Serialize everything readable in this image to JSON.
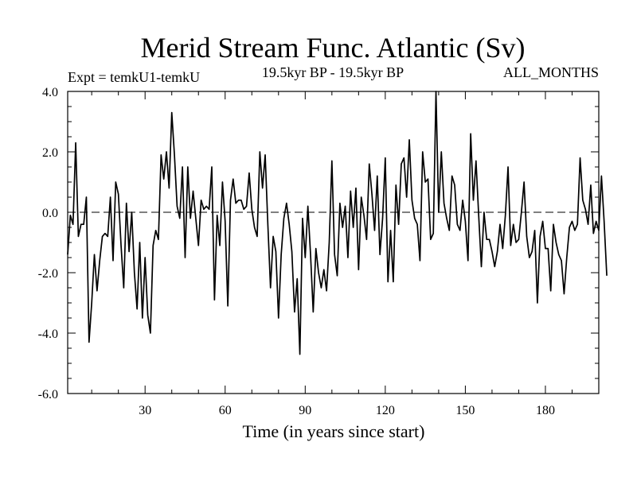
{
  "chart_data": {
    "type": "line",
    "title": "Merid Stream Func. Atlantic (Sv)",
    "subtitle_left": "Expt = temkU1-temkU",
    "subtitle_center": "19.5kyr BP - 19.5kyr BP",
    "subtitle_right": "ALL_MONTHS",
    "xlabel": "Time (in years since start)",
    "ylabel": "",
    "xlim": [
      1,
      200
    ],
    "ylim": [
      -6.0,
      4.0
    ],
    "xticks": [
      30,
      60,
      90,
      120,
      150,
      180
    ],
    "yticks": [
      -6.0,
      -4.0,
      -2.0,
      0.0,
      2.0,
      4.0
    ],
    "ytick_labels": [
      "-6.0",
      "-4.0",
      "-2.0",
      "0.0",
      "2.0",
      "4.0"
    ],
    "xtick_labels": [
      "30",
      "60",
      "90",
      "120",
      "150",
      "180"
    ],
    "zero_line": 0.0,
    "series": [
      {
        "name": "Merid Stream Func. Atlantic",
        "x_start": 1,
        "x_step": 1,
        "values": [
          -1.4,
          -0.1,
          -0.4,
          2.3,
          -0.8,
          -0.4,
          -0.4,
          0.5,
          -4.3,
          -3.0,
          -1.4,
          -2.6,
          -1.6,
          -0.8,
          -0.7,
          -0.8,
          0.5,
          -1.6,
          1.0,
          0.6,
          -1.1,
          -2.5,
          0.3,
          -1.3,
          0.0,
          -2.0,
          -3.2,
          -1.0,
          -3.5,
          -1.5,
          -3.4,
          -4.0,
          -1.1,
          -0.6,
          -0.9,
          1.9,
          1.1,
          2.0,
          0.8,
          3.3,
          1.9,
          0.2,
          -0.2,
          1.5,
          -1.5,
          1.5,
          -0.2,
          0.7,
          -0.2,
          -1.1,
          0.4,
          0.1,
          0.2,
          0.1,
          1.5,
          -2.9,
          -0.1,
          -1.1,
          1.0,
          -0.3,
          -3.1,
          0.4,
          1.1,
          0.3,
          0.4,
          0.4,
          0.1,
          0.2,
          1.3,
          0.1,
          -0.5,
          -0.8,
          2.0,
          0.8,
          1.9,
          -0.4,
          -2.5,
          -0.8,
          -1.3,
          -3.5,
          -1.4,
          -0.2,
          0.3,
          -0.4,
          -1.3,
          -3.3,
          -2.2,
          -4.7,
          -0.2,
          -1.5,
          0.2,
          -1.4,
          -3.3,
          -1.2,
          -2.0,
          -2.5,
          -1.9,
          -2.6,
          -1.0,
          1.7,
          -1.4,
          -2.1,
          0.3,
          -0.5,
          0.2,
          -1.5,
          0.7,
          -0.5,
          0.8,
          -1.9,
          0.5,
          -0.1,
          -0.9,
          1.6,
          0.6,
          -0.6,
          1.2,
          -1.4,
          -0.2,
          1.8,
          -2.3,
          -0.6,
          -2.3,
          0.9,
          -0.4,
          1.6,
          1.8,
          0.5,
          2.4,
          0.4,
          -0.2,
          -0.4,
          -1.6,
          2.0,
          1.0,
          1.1,
          -0.9,
          -0.7,
          4.0,
          0.0,
          2.0,
          0.3,
          -0.2,
          -0.6,
          1.2,
          0.9,
          -0.4,
          -0.6,
          0.4,
          -0.3,
          -1.6,
          2.6,
          0.4,
          1.7,
          -0.1,
          -1.8,
          0.0,
          -0.9,
          -0.9,
          -1.3,
          -1.8,
          -1.3,
          -0.4,
          -1.2,
          -0.1,
          1.5,
          -1.1,
          -0.4,
          -1.0,
          -0.9,
          0.0,
          1.0,
          -0.8,
          -1.5,
          -1.3,
          -0.6,
          -3.0,
          -0.8,
          -0.3,
          -1.2,
          -1.2,
          -2.6,
          -0.4,
          -1.0,
          -1.4,
          -1.6,
          -2.7,
          -1.5,
          -0.5,
          -0.3,
          -0.6,
          -0.4,
          1.8,
          0.4,
          0.1,
          -0.4,
          0.9,
          -0.7,
          -0.3,
          -0.6,
          1.2,
          -0.3,
          -2.1
        ]
      }
    ]
  }
}
